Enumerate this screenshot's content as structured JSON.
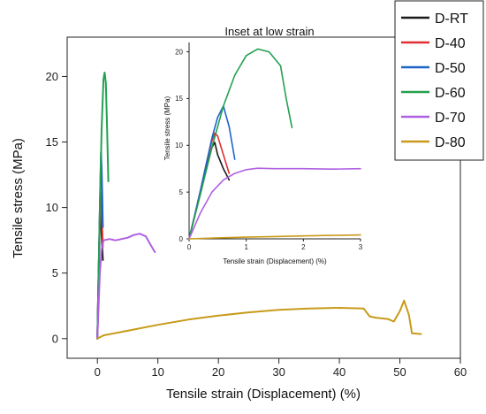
{
  "chart_data": [
    {
      "type": "line",
      "xlabel": "Tensile strain (Displacement) (%)",
      "ylabel": "Tensile stress (MPa)",
      "xlim": [
        -5,
        60
      ],
      "ylim": [
        -1.5,
        23
      ],
      "xticks": [
        0,
        10,
        20,
        30,
        40,
        50,
        60
      ],
      "yticks": [
        0,
        5,
        10,
        15,
        20
      ],
      "series": [
        {
          "name": "D-RT",
          "color": "#1a1a1a",
          "x": [
            0,
            0.2,
            0.4,
            0.5,
            0.6,
            0.7,
            0.9
          ],
          "y": [
            0,
            5,
            9,
            10.3,
            9.5,
            8,
            6
          ]
        },
        {
          "name": "D-40",
          "color": "#e03030",
          "x": [
            0,
            0.2,
            0.4,
            0.5,
            0.6,
            0.7,
            0.9
          ],
          "y": [
            0,
            5,
            9.5,
            11.2,
            10.8,
            9.5,
            7
          ]
        },
        {
          "name": "D-50",
          "color": "#1e64c8",
          "x": [
            0,
            0.2,
            0.4,
            0.6,
            0.7,
            0.8,
            0.9
          ],
          "y": [
            0,
            5,
            10,
            14.2,
            13,
            11,
            8.5
          ]
        },
        {
          "name": "D-60",
          "color": "#22a050",
          "x": [
            0,
            0.2,
            0.4,
            0.7,
            1.0,
            1.2,
            1.4,
            1.6,
            1.8
          ],
          "y": [
            0,
            4.5,
            10,
            16,
            19.8,
            20.3,
            19.5,
            16,
            12
          ]
        },
        {
          "name": "D-70",
          "color": "#b060e0",
          "x": [
            0,
            0.2,
            0.4,
            0.7,
            1.0,
            2,
            3,
            4,
            5,
            6,
            7,
            8,
            9,
            9.5
          ],
          "y": [
            0,
            2.5,
            5,
            6.8,
            7.5,
            7.6,
            7.5,
            7.6,
            7.7,
            7.9,
            8.0,
            7.8,
            7.0,
            6.6
          ]
        },
        {
          "name": "D-80",
          "color": "#c89a1a",
          "x": [
            0,
            1,
            5,
            10,
            15,
            20,
            25,
            30,
            35,
            40,
            44,
            45,
            46,
            48,
            49,
            50,
            50.7,
            51.5,
            52,
            53.5
          ],
          "y": [
            0,
            0.25,
            0.6,
            1.05,
            1.45,
            1.75,
            2.0,
            2.2,
            2.3,
            2.35,
            2.3,
            1.7,
            1.6,
            1.5,
            1.3,
            2.1,
            2.9,
            1.8,
            0.4,
            0.35
          ]
        }
      ]
    },
    {
      "type": "line",
      "title": "Inset at low strain",
      "xlabel": "Tensile strain (Displacement) (%)",
      "ylabel": "Tensile stress (MPa)",
      "xlim": [
        0,
        3
      ],
      "ylim": [
        0,
        21
      ],
      "xticks": [
        0,
        1,
        2,
        3
      ],
      "yticks": [
        0,
        5,
        10,
        15,
        20
      ],
      "series": [
        {
          "name": "D-RT",
          "color": "#1a1a1a",
          "x": [
            0,
            0.1,
            0.2,
            0.3,
            0.4,
            0.45,
            0.5,
            0.6,
            0.7
          ],
          "y": [
            0,
            2.5,
            5,
            7.5,
            9.8,
            10.3,
            9.0,
            7.5,
            6.3
          ]
        },
        {
          "name": "D-40",
          "color": "#e03030",
          "x": [
            0,
            0.1,
            0.2,
            0.3,
            0.4,
            0.45,
            0.5,
            0.6,
            0.7
          ],
          "y": [
            0,
            2.6,
            5.2,
            8,
            10.5,
            11.3,
            11.0,
            9.0,
            7.0
          ]
        },
        {
          "name": "D-50",
          "color": "#1e64c8",
          "x": [
            0,
            0.1,
            0.2,
            0.3,
            0.4,
            0.5,
            0.6,
            0.7,
            0.8
          ],
          "y": [
            0,
            2.6,
            5.2,
            8,
            10.8,
            13,
            14.2,
            12,
            8.5
          ]
        },
        {
          "name": "D-60",
          "color": "#22a050",
          "x": [
            0,
            0.2,
            0.4,
            0.6,
            0.8,
            1.0,
            1.2,
            1.4,
            1.6,
            1.7,
            1.8
          ],
          "y": [
            0,
            4.8,
            9.8,
            14.2,
            17.5,
            19.6,
            20.3,
            20.0,
            18.5,
            15,
            11.9
          ]
        },
        {
          "name": "D-70",
          "color": "#b060e0",
          "x": [
            0,
            0.2,
            0.4,
            0.6,
            0.8,
            1.0,
            1.2,
            1.5,
            2.0,
            2.5,
            3.0
          ],
          "y": [
            0,
            2.8,
            5.0,
            6.3,
            7.0,
            7.4,
            7.55,
            7.5,
            7.5,
            7.45,
            7.5
          ]
        },
        {
          "name": "D-80",
          "color": "#c89a1a",
          "x": [
            0,
            0.5,
            1.0,
            1.5,
            2.0,
            2.5,
            3.0
          ],
          "y": [
            0,
            0.1,
            0.18,
            0.25,
            0.31,
            0.37,
            0.42
          ]
        }
      ]
    }
  ],
  "legend": {
    "placement": "top-right",
    "items": [
      {
        "name": "D-RT",
        "color": "#1a1a1a"
      },
      {
        "name": "D-40",
        "color": "#e03030"
      },
      {
        "name": "D-50",
        "color": "#1e64c8"
      },
      {
        "name": "D-60",
        "color": "#22a050"
      },
      {
        "name": "D-70",
        "color": "#b060e0"
      },
      {
        "name": "D-80",
        "color": "#c89a1a"
      }
    ]
  }
}
